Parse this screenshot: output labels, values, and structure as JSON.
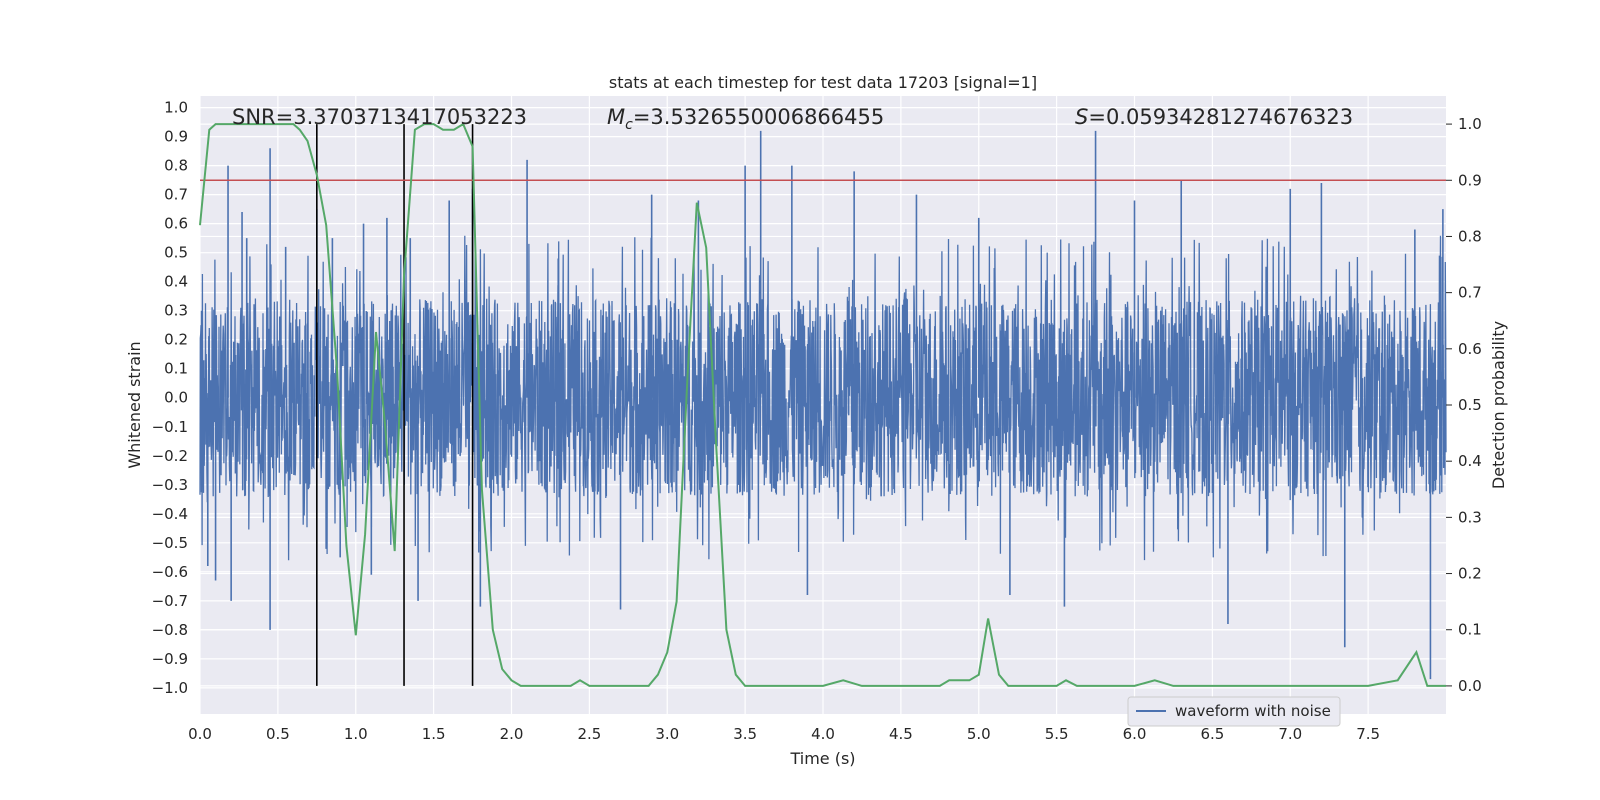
{
  "chart_data": {
    "type": "line",
    "title": "stats at each timestep for test data 17203 [signal=1]",
    "xlabel": "Time (s)",
    "ylabel": "Whitened strain",
    "y2label": "Detection probability",
    "xlim": [
      0.0,
      8.0
    ],
    "ylim": [
      -1.09,
      1.04
    ],
    "y2lim": [
      -0.05,
      1.05
    ],
    "xticks": [
      "0.0",
      "0.5",
      "1.0",
      "1.5",
      "2.0",
      "2.5",
      "3.0",
      "3.5",
      "4.0",
      "4.5",
      "5.0",
      "5.5",
      "6.0",
      "6.5",
      "7.0",
      "7.5"
    ],
    "yticks": [
      "1.0",
      "0.9",
      "0.8",
      "0.7",
      "0.6",
      "0.5",
      "0.4",
      "0.3",
      "0.2",
      "0.1",
      "0.0",
      "−0.1",
      "−0.2",
      "−0.3",
      "−0.4",
      "−0.5",
      "−0.6",
      "−0.7",
      "−0.8",
      "−0.9",
      "−1.0"
    ],
    "y2ticks": [
      "1.0",
      "0.9",
      "0.8",
      "0.7",
      "0.6",
      "0.5",
      "0.4",
      "0.3",
      "0.2",
      "0.1",
      "0.0"
    ],
    "grid": true,
    "legend": {
      "placement": "lower-right",
      "entries": [
        "waveform with noise"
      ]
    },
    "annotations": {
      "snr": "SNR=3.3703713417053223",
      "mc": "=3.5326550006866455",
      "mc_symbol": "M",
      "mc_sub": "c",
      "s": "=0.05934281274676323",
      "s_symbol": "S"
    },
    "threshold": {
      "y2": 0.9,
      "color": "#c44e52"
    },
    "vlines": [
      0.75,
      1.31,
      1.75
    ],
    "colors": {
      "waveform": "#4c72b0",
      "probability": "#55a868",
      "vline": "#000000",
      "background": "#eaeaf2"
    },
    "series": [
      {
        "name": "waveform with noise",
        "kind": "noise",
        "typical_envelope": 0.34,
        "peaks": [
          [
            0.01,
            0.3
          ],
          [
            0.05,
            -0.58
          ],
          [
            0.1,
            -0.63
          ],
          [
            0.18,
            0.8
          ],
          [
            0.2,
            -0.7
          ],
          [
            0.27,
            0.64
          ],
          [
            0.3,
            0.55
          ],
          [
            0.45,
            0.86
          ],
          [
            0.45,
            -0.8
          ],
          [
            0.55,
            0.52
          ],
          [
            0.75,
            0.65
          ],
          [
            0.85,
            0.55
          ],
          [
            0.9,
            -0.55
          ],
          [
            1.05,
            0.6
          ],
          [
            1.1,
            -0.61
          ],
          [
            1.2,
            0.62
          ],
          [
            1.35,
            0.55
          ],
          [
            1.4,
            -0.7
          ],
          [
            1.6,
            0.68
          ],
          [
            1.75,
            0.72
          ],
          [
            1.8,
            -0.72
          ],
          [
            2.1,
            0.82
          ],
          [
            2.3,
            0.48
          ],
          [
            2.7,
            -0.73
          ],
          [
            2.9,
            0.7
          ],
          [
            3.2,
            0.68
          ],
          [
            3.5,
            0.8
          ],
          [
            3.6,
            0.92
          ],
          [
            3.8,
            0.8
          ],
          [
            3.9,
            -0.68
          ],
          [
            4.2,
            0.78
          ],
          [
            4.6,
            0.7
          ],
          [
            5.0,
            0.62
          ],
          [
            5.2,
            -0.68
          ],
          [
            5.55,
            -0.72
          ],
          [
            5.75,
            0.92
          ],
          [
            6.0,
            0.68
          ],
          [
            6.3,
            0.75
          ],
          [
            6.6,
            -0.78
          ],
          [
            7.0,
            0.72
          ],
          [
            7.2,
            0.74
          ],
          [
            7.35,
            -0.86
          ],
          [
            7.8,
            0.58
          ],
          [
            7.9,
            -0.97
          ],
          [
            7.98,
            0.65
          ]
        ]
      },
      {
        "name": "",
        "kind": "probability",
        "axis": "y2",
        "x": [
          0.0,
          0.06,
          0.1,
          0.2,
          0.3,
          0.4,
          0.5,
          0.6,
          0.64,
          0.69,
          0.75,
          0.81,
          0.88,
          0.94,
          1.0,
          1.06,
          1.13,
          1.19,
          1.25,
          1.31,
          1.38,
          1.44,
          1.5,
          1.56,
          1.63,
          1.69,
          1.75,
          1.81,
          1.88,
          1.94,
          2.0,
          2.06,
          2.13,
          2.19,
          2.25,
          2.31,
          2.38,
          2.44,
          2.5,
          2.56,
          2.63,
          2.69,
          2.75,
          2.81,
          2.88,
          2.94,
          3.0,
          3.06,
          3.13,
          3.19,
          3.25,
          3.31,
          3.38,
          3.44,
          3.5,
          3.75,
          4.0,
          4.13,
          4.25,
          4.5,
          4.75,
          4.81,
          4.94,
          5.0,
          5.06,
          5.13,
          5.19,
          5.31,
          5.44,
          5.5,
          5.56,
          5.63,
          5.75,
          6.0,
          6.13,
          6.25,
          6.5,
          6.75,
          7.0,
          7.25,
          7.5,
          7.69,
          7.81,
          7.88,
          7.92,
          8.0
        ],
        "y": [
          0.82,
          0.99,
          1.0,
          1.0,
          1.0,
          1.0,
          1.0,
          1.0,
          0.99,
          0.97,
          0.91,
          0.82,
          0.56,
          0.25,
          0.09,
          0.27,
          0.63,
          0.46,
          0.24,
          0.73,
          0.99,
          1.0,
          1.0,
          0.99,
          0.99,
          1.0,
          0.96,
          0.35,
          0.1,
          0.03,
          0.01,
          0.0,
          0.0,
          0.0,
          0.0,
          0.0,
          0.0,
          0.01,
          0.0,
          0.0,
          0.0,
          0.0,
          0.0,
          0.0,
          0.0,
          0.02,
          0.06,
          0.15,
          0.55,
          0.86,
          0.78,
          0.45,
          0.1,
          0.02,
          0.0,
          0.0,
          0.0,
          0.01,
          0.0,
          0.0,
          0.0,
          0.01,
          0.01,
          0.02,
          0.12,
          0.02,
          0.0,
          0.0,
          0.0,
          0.0,
          0.01,
          0.0,
          0.0,
          0.0,
          0.01,
          0.0,
          0.0,
          0.0,
          0.0,
          0.0,
          0.0,
          0.01,
          0.06,
          0.0,
          0.0,
          0.0
        ]
      }
    ]
  }
}
